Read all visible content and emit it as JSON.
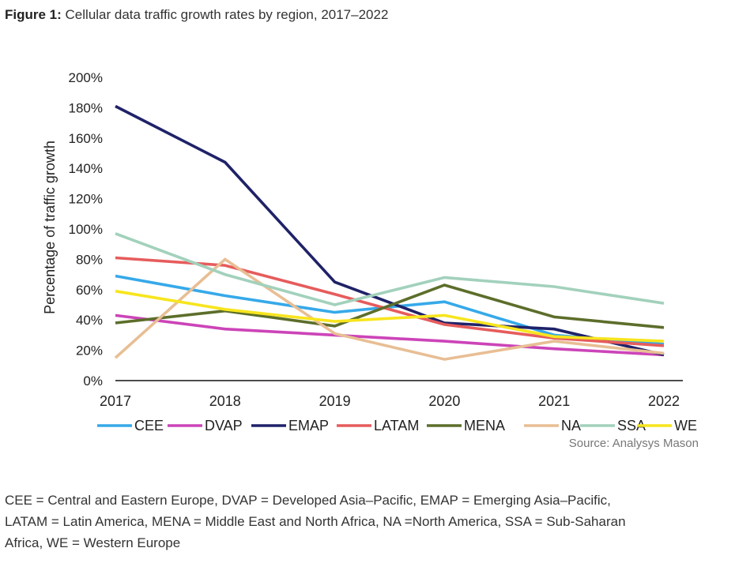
{
  "figure": {
    "label": "Figure 1:",
    "title": "Cellular data traffic growth rates by region, 2017–2022"
  },
  "chart_data": {
    "type": "line",
    "title": "",
    "xlabel": "",
    "ylabel": "Percentage of traffic growth",
    "x": [
      "2017",
      "2018",
      "2019",
      "2020",
      "2021",
      "2022"
    ],
    "ylim": [
      0,
      200
    ],
    "yticks": [
      0,
      20,
      40,
      60,
      80,
      100,
      120,
      140,
      160,
      180,
      200
    ],
    "ytick_labels": [
      "0%",
      "20%",
      "40%",
      "60%",
      "80%",
      "100%",
      "120%",
      "140%",
      "160%",
      "180%",
      "200%"
    ],
    "unit": "%",
    "grid": false,
    "legend_position": "bottom",
    "series": [
      {
        "name": "CEE",
        "color": "#36A9E9",
        "values": [
          69,
          56,
          45,
          52,
          30,
          24
        ]
      },
      {
        "name": "DVAP",
        "color": "#CC44B8",
        "values": [
          43,
          34,
          30,
          26,
          21,
          17
        ]
      },
      {
        "name": "EMAP",
        "color": "#1F2268",
        "values": [
          181,
          144,
          65,
          38,
          34,
          17
        ]
      },
      {
        "name": "LATAM",
        "color": "#E65C5C",
        "values": [
          81,
          76,
          57,
          37,
          28,
          23
        ]
      },
      {
        "name": "MENA",
        "color": "#5C6E2A",
        "values": [
          38,
          46,
          36,
          63,
          42,
          35
        ]
      },
      {
        "name": "NA",
        "color": "#E8BE94",
        "values": [
          15,
          80,
          31,
          14,
          26,
          18
        ]
      },
      {
        "name": "SSA",
        "color": "#A2D1BC",
        "values": [
          97,
          70,
          50,
          68,
          62,
          51
        ]
      },
      {
        "name": "WE",
        "color": "#F7E51D",
        "values": [
          59,
          47,
          39,
          43,
          29,
          26
        ]
      }
    ],
    "source": "Source: Analysys Mason"
  },
  "footnote": {
    "line1": "CEE = Central and Eastern Europe, DVAP = Developed Asia–Pacific, EMAP = Emerging Asia–Pacific,",
    "line2": "LATAM = Latin America, MENA = Middle East and North Africa, NA =North America, SSA = Sub-Saharan",
    "line3": "Africa, WE = Western Europe"
  }
}
